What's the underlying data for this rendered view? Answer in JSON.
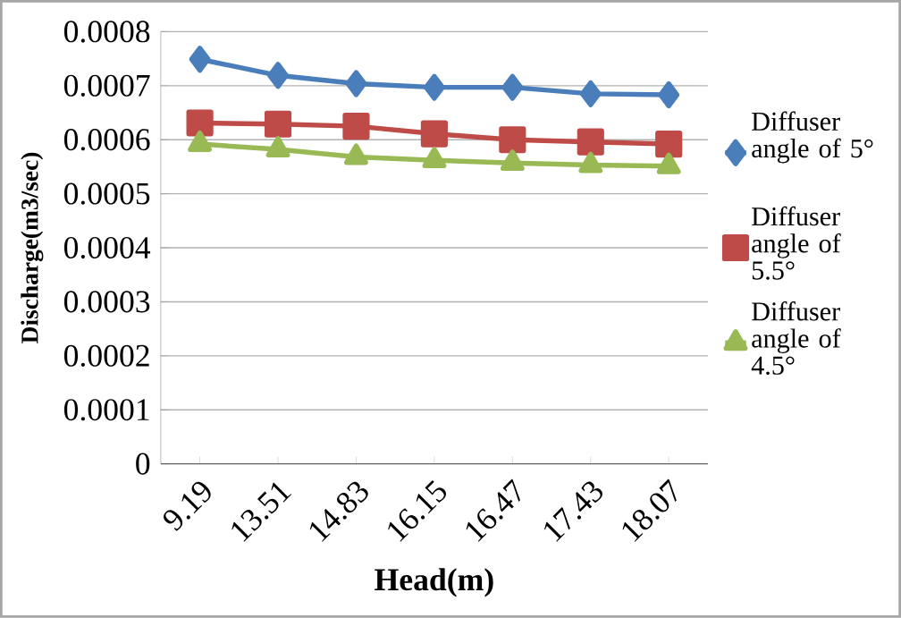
{
  "chart_data": {
    "type": "line",
    "xlabel": "Head(m)",
    "ylabel": "Discharge(m3/sec)",
    "categories": [
      "9.19",
      "13.51",
      "14.83",
      "16.15",
      "16.47",
      "17.43",
      "18.07"
    ],
    "series": [
      {
        "name": "Diffuser angle of 5°",
        "color": "#4a7ebb",
        "marker": "diamond",
        "values": [
          0.000749,
          0.000719,
          0.000704,
          0.000697,
          0.000697,
          0.000685,
          0.000683
        ]
      },
      {
        "name": "Diffuser angle of 5.5°",
        "color": "#be4b48",
        "marker": "square",
        "values": [
          0.000631,
          0.000629,
          0.000625,
          0.000611,
          0.0006,
          0.000596,
          0.000592
        ]
      },
      {
        "name": "Diffuser angle of 4.5°",
        "color": "#98b954",
        "marker": "triangle",
        "values": [
          0.000592,
          0.000582,
          0.000568,
          0.000562,
          0.000557,
          0.000553,
          0.000551
        ]
      }
    ],
    "ylim": [
      0,
      0.0008
    ],
    "yticks": [
      0,
      0.0001,
      0.0002,
      0.0003,
      0.0004,
      0.0005,
      0.0006,
      0.0007,
      0.0008
    ],
    "grid": "y",
    "legend": "right"
  }
}
